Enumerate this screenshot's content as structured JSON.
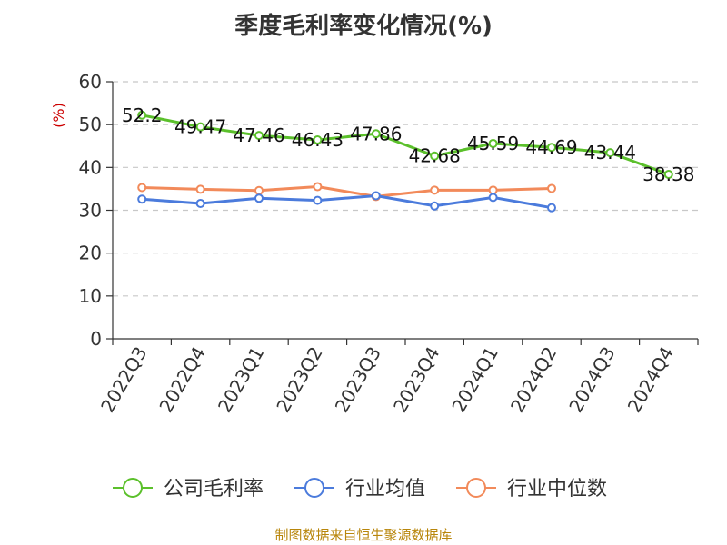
{
  "chart_data": {
    "type": "line",
    "title": "季度毛利率变化情况(%)",
    "ylabel": "(%)",
    "xlabel": "",
    "ylim": [
      0,
      60
    ],
    "yticks": [
      0,
      10,
      20,
      30,
      40,
      50,
      60
    ],
    "grid": true,
    "legend_placement": "bottom",
    "categories": [
      "2022Q3",
      "2022Q4",
      "2023Q1",
      "2023Q2",
      "2023Q3",
      "2023Q4",
      "2024Q1",
      "2024Q2",
      "2024Q3",
      "2024Q4"
    ],
    "series": [
      {
        "name": "公司毛利率",
        "color": "#5bc02b",
        "values": [
          52.2,
          49.47,
          47.46,
          46.43,
          47.86,
          42.68,
          45.59,
          44.69,
          43.44,
          38.38
        ],
        "labels": [
          "52.2",
          "49.47",
          "47.46",
          "46.43",
          "47.86",
          "42.68",
          "45.59",
          "44.69",
          "43.44",
          "38.38"
        ]
      },
      {
        "name": "行业均值",
        "color": "#4b7bdc",
        "values": [
          32.6,
          31.6,
          32.8,
          32.3,
          33.4,
          31.0,
          33.0,
          30.6,
          null,
          null
        ]
      },
      {
        "name": "行业中位数",
        "color": "#f28a5a",
        "values": [
          35.3,
          34.9,
          34.6,
          35.5,
          33.2,
          34.7,
          34.7,
          35.1,
          null,
          null
        ]
      }
    ]
  },
  "footer": {
    "source": "制图数据来自恒生聚源数据库"
  }
}
